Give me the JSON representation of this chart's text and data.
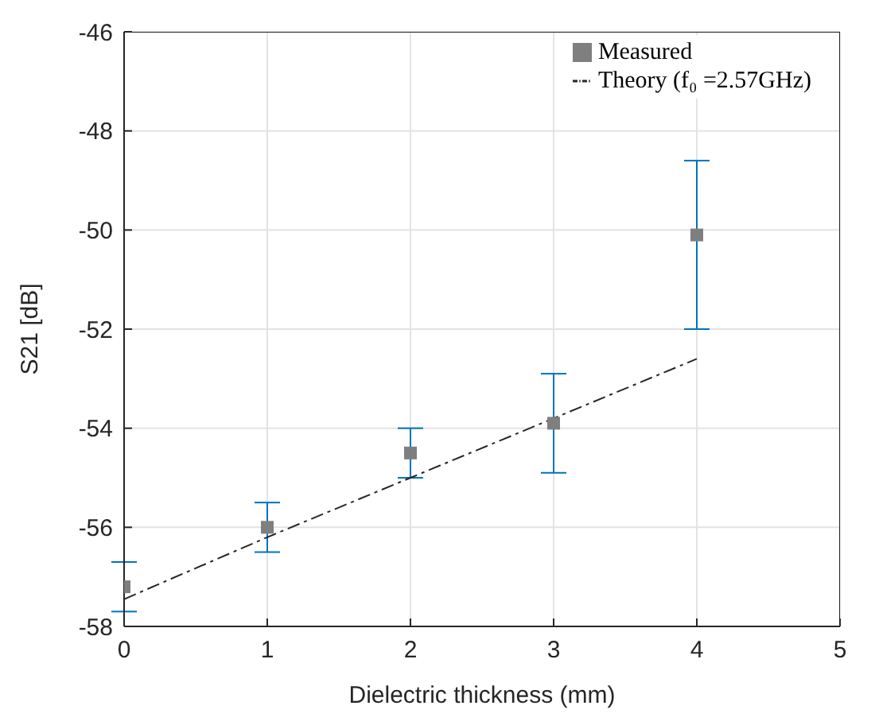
{
  "chart_data": {
    "type": "scatter",
    "xlabel": "Dielectric thickness (mm)",
    "ylabel": "S21 [dB]",
    "xlim": [
      0,
      5
    ],
    "xticks": [
      0,
      1,
      2,
      3,
      4,
      5
    ],
    "ylim": [
      -58,
      -46
    ],
    "yticks": [
      -58,
      -56,
      -54,
      -52,
      -50,
      -48,
      -46
    ],
    "grid": true,
    "legend": "top right",
    "marker": "square",
    "series": [
      {
        "name": "Measured",
        "color": "#7f7f7f",
        "x": [
          0,
          1,
          2,
          3,
          4
        ],
        "values": [
          -57.2,
          -56.0,
          -54.5,
          -53.9,
          -50.1
        ],
        "errors": [
          [
            -57.7,
            -56.7
          ],
          [
            -56.5,
            -55.5
          ],
          [
            -55.0,
            -54.0
          ],
          [
            -54.9,
            -52.9
          ],
          [
            -52.0,
            -48.6
          ]
        ]
      },
      {
        "name": "Theory (f₀ =2.57GHz)",
        "type": "line",
        "color": "#262626",
        "line_style": "dashed",
        "marker": "none",
        "x": [
          0,
          1,
          2,
          3,
          4
        ],
        "values": [
          -57.45,
          -56.2,
          -55.0,
          -53.8,
          -52.6
        ]
      }
    ]
  }
}
